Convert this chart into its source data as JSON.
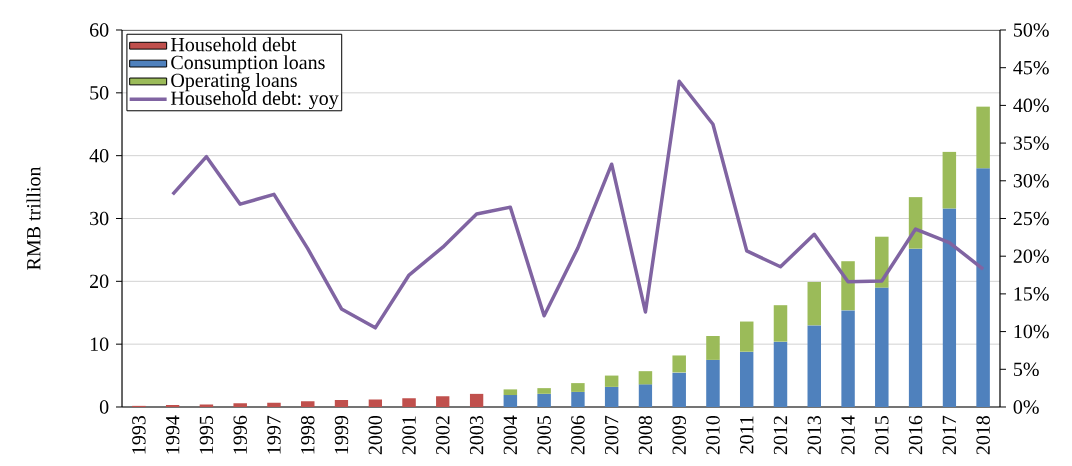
{
  "chart_data": {
    "type": "bar",
    "stacked": true,
    "categories": [
      "1993",
      "1994",
      "1995",
      "1996",
      "1997",
      "1998",
      "1999",
      "2000",
      "2001",
      "2002",
      "2003",
      "2004",
      "2005",
      "2006",
      "2007",
      "2008",
      "2009",
      "2010",
      "2011",
      "2012",
      "2013",
      "2014",
      "2015",
      "2016",
      "2017",
      "2018"
    ],
    "ylabel": "RMB trillion",
    "ylim": [
      0,
      60
    ],
    "yticks": [
      0,
      10,
      20,
      30,
      40,
      50,
      60
    ],
    "y2lim": [
      0,
      50
    ],
    "y2ticks": [
      {
        "value": 0,
        "label": "0%"
      },
      {
        "value": 5,
        "label": "5%"
      },
      {
        "value": 10,
        "label": "10%"
      },
      {
        "value": 15,
        "label": "15%"
      },
      {
        "value": 20,
        "label": "20%"
      },
      {
        "value": 25,
        "label": "25%"
      },
      {
        "value": 30,
        "label": "30%"
      },
      {
        "value": 35,
        "label": "35%"
      },
      {
        "value": 40,
        "label": "40%"
      },
      {
        "value": 45,
        "label": "45%"
      },
      {
        "value": 50,
        "label": "50%"
      }
    ],
    "grid": "y",
    "legend": "top left",
    "series": [
      {
        "name": "Household debt",
        "color": "#c0504d",
        "values": [
          0.2,
          0.3,
          0.4,
          0.6,
          0.7,
          0.9,
          1.1,
          1.2,
          1.4,
          1.7,
          2.1,
          null,
          null,
          null,
          null,
          null,
          null,
          null,
          null,
          null,
          null,
          null,
          null,
          null,
          null,
          null
        ]
      },
      {
        "name": "Consumption loans",
        "color": "#4f81bd",
        "values": [
          null,
          null,
          null,
          null,
          null,
          null,
          null,
          null,
          null,
          null,
          null,
          1.9,
          2.1,
          2.4,
          3.2,
          3.6,
          5.5,
          7.5,
          8.8,
          10.4,
          13.0,
          15.4,
          19.0,
          25.2,
          31.6,
          38.0
        ]
      },
      {
        "name": "Operating loans",
        "color": "#9bbb59",
        "values": [
          null,
          null,
          null,
          null,
          null,
          null,
          null,
          null,
          null,
          null,
          null,
          0.9,
          0.9,
          1.4,
          1.8,
          2.1,
          2.7,
          3.8,
          4.8,
          5.8,
          6.9,
          7.8,
          8.1,
          8.2,
          9.0,
          9.8
        ]
      },
      {
        "name": "Household debt: yoy",
        "type": "line",
        "axis": "y2",
        "color": "#8064a2",
        "values": [
          null,
          28.2,
          33.2,
          26.9,
          28.2,
          21,
          13.0,
          10.5,
          17.5,
          21.2,
          25.6,
          26.5,
          12.1,
          21.1,
          32.2,
          12.6,
          43.2,
          37.5,
          20.7,
          18.6,
          22.9,
          16.6,
          16.7,
          23.6,
          21.8,
          18.3
        ]
      }
    ]
  }
}
